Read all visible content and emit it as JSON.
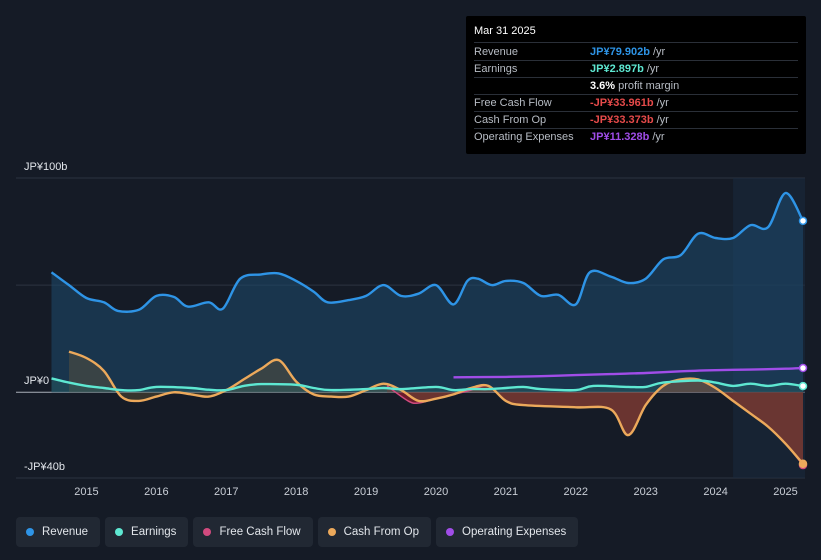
{
  "chart_data": {
    "type": "line",
    "title": "",
    "currency_prefix": "JP¥",
    "y_axis": {
      "labels": [
        "JP¥100b",
        "JP¥0",
        "-JP¥40b"
      ],
      "ylim": [
        -40,
        100
      ],
      "gridlines": [
        100,
        50,
        0,
        -40
      ]
    },
    "x_axis": {
      "ticks": [
        "2015",
        "2016",
        "2017",
        "2018",
        "2019",
        "2020",
        "2021",
        "2022",
        "2023",
        "2024",
        "2025"
      ],
      "xlim": [
        2014.45,
        2025.25
      ]
    },
    "series": [
      {
        "name": "Revenue",
        "color": "#2e94e6",
        "points": [
          [
            2014.5,
            56
          ],
          [
            2014.75,
            50
          ],
          [
            2015.0,
            44
          ],
          [
            2015.25,
            42
          ],
          [
            2015.45,
            38
          ],
          [
            2015.75,
            38.5
          ],
          [
            2016.0,
            45
          ],
          [
            2016.25,
            44.5
          ],
          [
            2016.45,
            40
          ],
          [
            2016.75,
            42
          ],
          [
            2016.95,
            39
          ],
          [
            2017.2,
            53
          ],
          [
            2017.5,
            55
          ],
          [
            2017.75,
            55.5
          ],
          [
            2018.0,
            52
          ],
          [
            2018.25,
            47
          ],
          [
            2018.45,
            42
          ],
          [
            2018.75,
            43
          ],
          [
            2019.0,
            45
          ],
          [
            2019.25,
            50
          ],
          [
            2019.5,
            45
          ],
          [
            2019.75,
            46
          ],
          [
            2020.0,
            50
          ],
          [
            2020.25,
            41
          ],
          [
            2020.45,
            52
          ],
          [
            2020.6,
            53
          ],
          [
            2020.8,
            50
          ],
          [
            2021.0,
            52
          ],
          [
            2021.25,
            51
          ],
          [
            2021.5,
            45
          ],
          [
            2021.75,
            45.5
          ],
          [
            2022.0,
            41
          ],
          [
            2022.2,
            56
          ],
          [
            2022.5,
            54
          ],
          [
            2022.75,
            51
          ],
          [
            2023.0,
            53
          ],
          [
            2023.25,
            62
          ],
          [
            2023.5,
            64
          ],
          [
            2023.75,
            74
          ],
          [
            2024.0,
            72
          ],
          [
            2024.25,
            72
          ],
          [
            2024.5,
            78
          ],
          [
            2024.75,
            77
          ],
          [
            2025.0,
            93
          ],
          [
            2025.25,
            80
          ]
        ]
      },
      {
        "name": "Earnings",
        "color": "#5ee8d2",
        "points": [
          [
            2014.5,
            6.5
          ],
          [
            2014.75,
            4.5
          ],
          [
            2015.0,
            3
          ],
          [
            2015.25,
            2
          ],
          [
            2015.5,
            1
          ],
          [
            2015.75,
            1
          ],
          [
            2016.0,
            2.5
          ],
          [
            2016.5,
            2
          ],
          [
            2016.75,
            1.2
          ],
          [
            2017.0,
            1
          ],
          [
            2017.25,
            3
          ],
          [
            2017.5,
            3.8
          ],
          [
            2018.0,
            3.5
          ],
          [
            2018.25,
            2
          ],
          [
            2018.5,
            1
          ],
          [
            2019.0,
            1.5
          ],
          [
            2019.25,
            2
          ],
          [
            2019.5,
            1.5
          ],
          [
            2020.0,
            2.5
          ],
          [
            2020.25,
            1
          ],
          [
            2020.5,
            1.5
          ],
          [
            2020.75,
            1.5
          ],
          [
            2021.0,
            2
          ],
          [
            2021.25,
            2.5
          ],
          [
            2021.5,
            1.5
          ],
          [
            2022.0,
            1
          ],
          [
            2022.25,
            3
          ],
          [
            2022.75,
            2.5
          ],
          [
            2023.0,
            2.5
          ],
          [
            2023.25,
            4.5
          ],
          [
            2023.75,
            5.5
          ],
          [
            2024.0,
            4.5
          ],
          [
            2024.25,
            3
          ],
          [
            2024.5,
            4
          ],
          [
            2024.75,
            3
          ],
          [
            2025.0,
            4
          ],
          [
            2025.25,
            2.9
          ]
        ]
      },
      {
        "name": "Free Cash Flow",
        "color": "#d14a7e",
        "points": [
          [
            2019.3,
            3
          ],
          [
            2019.6,
            -4
          ],
          [
            2019.75,
            -5
          ],
          [
            2020.0,
            -3
          ],
          [
            2020.25,
            -1
          ],
          [
            2020.5,
            1
          ],
          [
            2020.75,
            3
          ],
          [
            2021.0,
            -4
          ],
          [
            2021.25,
            -6
          ],
          [
            2022.0,
            -7
          ],
          [
            2022.5,
            -8
          ],
          [
            2022.75,
            -20
          ],
          [
            2023.0,
            -6
          ],
          [
            2023.25,
            3
          ],
          [
            2023.5,
            6
          ],
          [
            2023.75,
            6
          ],
          [
            2024.0,
            2
          ],
          [
            2024.25,
            -4
          ],
          [
            2024.5,
            -10
          ],
          [
            2024.75,
            -16
          ],
          [
            2025.0,
            -24
          ],
          [
            2025.25,
            -33.961
          ]
        ]
      },
      {
        "name": "Cash From Op",
        "color": "#eca95b",
        "points": [
          [
            2014.75,
            19
          ],
          [
            2015.0,
            16
          ],
          [
            2015.25,
            10
          ],
          [
            2015.5,
            -2
          ],
          [
            2015.75,
            -4
          ],
          [
            2016.0,
            -2
          ],
          [
            2016.25,
            0
          ],
          [
            2016.5,
            -1
          ],
          [
            2016.75,
            -2
          ],
          [
            2017.0,
            1
          ],
          [
            2017.25,
            6
          ],
          [
            2017.5,
            11
          ],
          [
            2017.75,
            15
          ],
          [
            2018.0,
            5
          ],
          [
            2018.25,
            -1
          ],
          [
            2018.5,
            -2
          ],
          [
            2018.75,
            -2
          ],
          [
            2019.0,
            1
          ],
          [
            2019.25,
            4
          ],
          [
            2019.5,
            1
          ],
          [
            2019.75,
            -4
          ],
          [
            2020.0,
            -3
          ],
          [
            2020.25,
            -1
          ],
          [
            2020.5,
            2
          ],
          [
            2020.75,
            3
          ],
          [
            2021.0,
            -4
          ],
          [
            2021.25,
            -6
          ],
          [
            2022.0,
            -7
          ],
          [
            2022.5,
            -8
          ],
          [
            2022.75,
            -20
          ],
          [
            2023.0,
            -6
          ],
          [
            2023.25,
            3
          ],
          [
            2023.5,
            6
          ],
          [
            2023.75,
            6
          ],
          [
            2024.0,
            2
          ],
          [
            2024.25,
            -4
          ],
          [
            2024.5,
            -10
          ],
          [
            2024.75,
            -16
          ],
          [
            2025.0,
            -24
          ],
          [
            2025.25,
            -33.373
          ]
        ]
      },
      {
        "name": "Operating Expenses",
        "color": "#a04de8",
        "points": [
          [
            2020.25,
            7
          ],
          [
            2021.0,
            7.2
          ],
          [
            2021.5,
            7.5
          ],
          [
            2022.0,
            8
          ],
          [
            2022.5,
            8.5
          ],
          [
            2023.0,
            9
          ],
          [
            2023.5,
            9.8
          ],
          [
            2024.0,
            10.3
          ],
          [
            2024.5,
            10.6
          ],
          [
            2025.0,
            11
          ],
          [
            2025.25,
            11.328
          ]
        ]
      }
    ]
  },
  "tooltip": {
    "date": "Mar 31 2025",
    "rows": [
      {
        "label": "Revenue",
        "value": "JP¥79.902b",
        "unit": "/yr",
        "color": "#2e94e6"
      },
      {
        "label": "Earnings",
        "value": "JP¥2.897b",
        "unit": "/yr",
        "color": "#5ee8d2"
      },
      {
        "label": "",
        "value": "3.6%",
        "unit": "profit margin",
        "color": "#ffffff"
      },
      {
        "label": "Free Cash Flow",
        "value": "-JP¥33.961b",
        "unit": "/yr",
        "color": "#e64a4a"
      },
      {
        "label": "Cash From Op",
        "value": "-JP¥33.373b",
        "unit": "/yr",
        "color": "#e64a4a"
      },
      {
        "label": "Operating Expenses",
        "value": "JP¥11.328b",
        "unit": "/yr",
        "color": "#a04de8"
      }
    ]
  },
  "legend": [
    {
      "label": "Revenue",
      "color": "#2e94e6"
    },
    {
      "label": "Earnings",
      "color": "#5ee8d2"
    },
    {
      "label": "Free Cash Flow",
      "color": "#d14a7e"
    },
    {
      "label": "Cash From Op",
      "color": "#eca95b"
    },
    {
      "label": "Operating Expenses",
      "color": "#a04de8"
    }
  ]
}
